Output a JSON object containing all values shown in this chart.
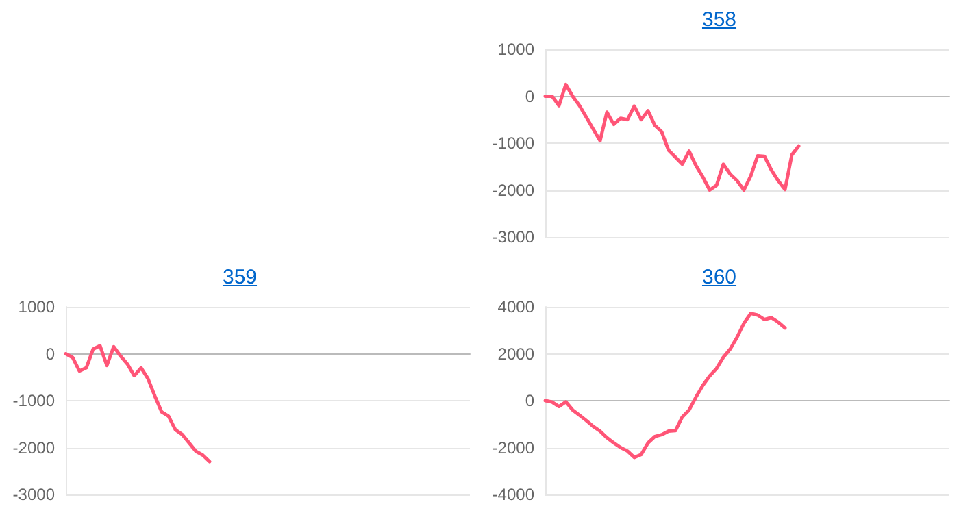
{
  "chart_data": [
    {
      "type": "line",
      "title": "358",
      "categories": [
        null,
        null,
        null,
        null,
        null,
        null,
        null,
        null,
        null,
        null,
        null,
        null,
        null,
        null,
        null,
        null,
        null,
        null,
        null,
        null,
        null,
        null,
        null,
        null,
        null,
        null,
        null,
        null,
        null,
        null,
        null,
        null,
        null,
        null,
        null,
        null,
        null,
        null,
        null,
        null,
        null,
        null,
        null,
        null,
        null,
        null,
        null,
        null,
        null,
        null,
        null,
        null,
        null,
        null,
        null,
        null,
        null,
        null,
        null,
        null
      ],
      "series": [
        {
          "color": "#ff5577",
          "values": [
            0,
            0,
            -200,
            250,
            0,
            -200,
            -450,
            -700,
            -950,
            -340,
            -600,
            -470,
            -500,
            -210,
            -500,
            -310,
            -620,
            -760,
            -1150,
            -1300,
            -1450,
            -1170,
            -1480,
            -1720,
            -2000,
            -1900,
            -1450,
            -1660,
            -1800,
            -2000,
            -1700,
            -1270,
            -1280,
            -1570,
            -1800,
            -1990,
            -1250,
            -1060,
            null,
            null,
            null,
            null,
            null,
            null,
            null,
            null,
            null,
            null,
            null,
            null,
            null,
            null,
            null,
            null,
            null,
            null,
            null,
            null,
            null,
            null
          ]
        }
      ],
      "ylim": [
        -3000,
        1000
      ],
      "yticks": [
        -3000,
        -2000,
        -1000,
        0,
        1000
      ],
      "grid": "y",
      "tick_labels": "y",
      "line_style": "solid"
    },
    {
      "type": "line",
      "title": "359",
      "categories": [
        null,
        null,
        null,
        null,
        null,
        null,
        null,
        null,
        null,
        null,
        null,
        null,
        null,
        null,
        null,
        null,
        null,
        null,
        null,
        null,
        null,
        null,
        null,
        null,
        null,
        null,
        null,
        null,
        null,
        null,
        null,
        null,
        null,
        null,
        null,
        null,
        null,
        null,
        null,
        null,
        null,
        null,
        null,
        null,
        null,
        null,
        null,
        null,
        null,
        null,
        null,
        null,
        null,
        null,
        null,
        null,
        null,
        null,
        null,
        null
      ],
      "series": [
        {
          "color": "#ff5577",
          "values": [
            0,
            -80,
            -370,
            -300,
            100,
            170,
            -250,
            150,
            -50,
            -220,
            -470,
            -300,
            -530,
            -900,
            -1240,
            -1330,
            -1620,
            -1720,
            -1900,
            -2080,
            -2160,
            -2300,
            null,
            null,
            null,
            null,
            null,
            null,
            null,
            null,
            null,
            null,
            null,
            null,
            null,
            null,
            null,
            null,
            null,
            null,
            null,
            null,
            null,
            null,
            null,
            null,
            null,
            null,
            null,
            null,
            null,
            null,
            null,
            null,
            null,
            null,
            null,
            null,
            null,
            null
          ]
        }
      ],
      "ylim": [
        -3000,
        1000
      ],
      "yticks": [
        -3000,
        -2000,
        -1000,
        0,
        1000
      ],
      "grid": "y",
      "tick_labels": "y",
      "line_style": "solid"
    },
    {
      "type": "line",
      "title": "360",
      "categories": [
        null,
        null,
        null,
        null,
        null,
        null,
        null,
        null,
        null,
        null,
        null,
        null,
        null,
        null,
        null,
        null,
        null,
        null,
        null,
        null,
        null,
        null,
        null,
        null,
        null,
        null,
        null,
        null,
        null,
        null,
        null,
        null,
        null,
        null,
        null,
        null,
        null,
        null,
        null,
        null,
        null,
        null,
        null,
        null,
        null,
        null,
        null,
        null,
        null,
        null,
        null,
        null,
        null,
        null,
        null,
        null,
        null,
        null,
        null,
        null
      ],
      "series": [
        {
          "color": "#ff5577",
          "values": [
            0,
            -60,
            -250,
            -50,
            -400,
            -620,
            -850,
            -1100,
            -1300,
            -1580,
            -1800,
            -2000,
            -2150,
            -2420,
            -2300,
            -1800,
            -1530,
            -1450,
            -1300,
            -1280,
            -700,
            -400,
            150,
            650,
            1050,
            1370,
            1850,
            2200,
            2700,
            3300,
            3720,
            3650,
            3460,
            3540,
            3350,
            3100,
            null,
            null,
            null,
            null,
            null,
            null,
            null,
            null,
            null,
            null,
            null,
            null,
            null,
            null,
            null,
            null,
            null,
            null,
            null,
            null,
            null,
            null,
            null,
            null
          ]
        }
      ],
      "ylim": [
        -4000,
        4000
      ],
      "yticks": [
        -4000,
        -2000,
        0,
        2000,
        4000
      ],
      "grid": "y",
      "tick_labels": "y",
      "line_style": "solid"
    }
  ]
}
